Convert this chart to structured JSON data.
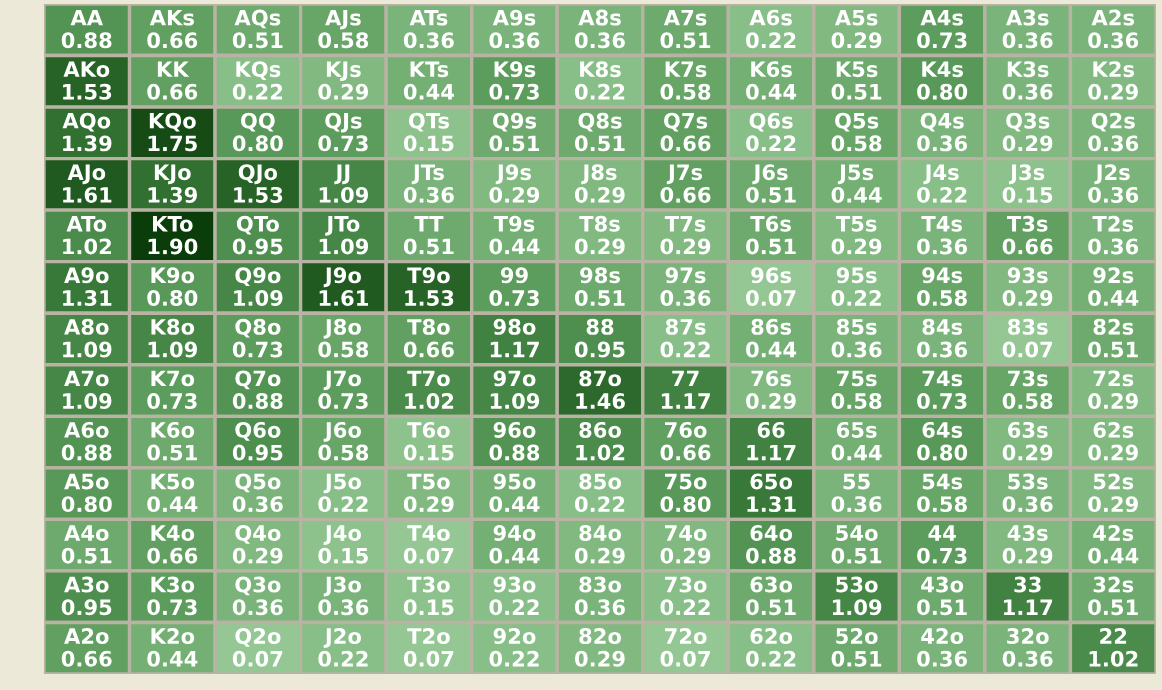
{
  "chart_data": {
    "type": "heatmap",
    "cell_labels": [
      [
        "0.88",
        "0.66",
        "0.51",
        "0.58",
        "0.36",
        "0.36",
        "0.36",
        "0.51",
        "0.22",
        "0.29",
        "0.73",
        "0.36",
        "0.36"
      ],
      [
        "1.53",
        "0.66",
        "0.22",
        "0.29",
        "0.44",
        "0.73",
        "0.22",
        "0.58",
        "0.44",
        "0.51",
        "0.80",
        "0.36",
        "0.29"
      ],
      [
        "1.39",
        "1.75",
        "0.80",
        "0.73",
        "0.15",
        "0.51",
        "0.51",
        "0.66",
        "0.22",
        "0.58",
        "0.36",
        "0.29",
        "0.36"
      ],
      [
        "1.61",
        "1.39",
        "1.53",
        "1.09",
        "0.36",
        "0.29",
        "0.29",
        "0.66",
        "0.51",
        "0.44",
        "0.22",
        "0.15",
        "0.36"
      ],
      [
        "1.02",
        "1.90",
        "0.95",
        "1.09",
        "0.51",
        "0.44",
        "0.29",
        "0.29",
        "0.51",
        "0.29",
        "0.36",
        "0.66",
        "0.36"
      ],
      [
        "1.31",
        "0.80",
        "1.09",
        "1.61",
        "1.53",
        "0.73",
        "0.51",
        "0.36",
        "0.07",
        "0.22",
        "0.58",
        "0.29",
        "0.44"
      ],
      [
        "1.09",
        "1.09",
        "0.73",
        "0.58",
        "0.66",
        "1.17",
        "0.95",
        "0.22",
        "0.44",
        "0.36",
        "0.36",
        "0.07",
        "0.51"
      ],
      [
        "1.09",
        "0.73",
        "0.88",
        "0.73",
        "1.02",
        "1.09",
        "1.46",
        "1.17",
        "0.29",
        "0.58",
        "0.73",
        "0.58",
        "0.29"
      ],
      [
        "0.88",
        "0.51",
        "0.95",
        "0.58",
        "0.15",
        "0.88",
        "1.02",
        "0.66",
        "1.17",
        "0.44",
        "0.80",
        "0.29",
        "0.29"
      ],
      [
        "0.80",
        "0.44",
        "0.36",
        "0.22",
        "0.29",
        "0.44",
        "0.22",
        "0.80",
        "1.31",
        "0.36",
        "0.58",
        "0.36",
        "0.29"
      ],
      [
        "0.51",
        "0.66",
        "0.29",
        "0.15",
        "0.07",
        "0.44",
        "0.29",
        "0.29",
        "0.88",
        "0.51",
        "0.73",
        "0.29",
        "0.44"
      ],
      [
        "0.95",
        "0.73",
        "0.36",
        "0.36",
        "0.15",
        "0.22",
        "0.36",
        "0.22",
        "0.51",
        "1.09",
        "0.51",
        "1.17",
        "0.51"
      ],
      [
        "0.66",
        "0.44",
        "0.07",
        "0.22",
        "0.07",
        "0.22",
        "0.29",
        "0.07",
        "0.22",
        "0.51",
        "0.36",
        "0.36",
        "1.02"
      ]
    ],
    "categories": [
      null,
      null,
      null,
      null,
      null,
      null,
      null,
      null,
      null,
      null,
      null,
      null,
      null
    ],
    "y_categories": [
      null,
      null,
      null,
      null,
      null,
      null,
      null,
      null,
      null,
      null,
      null,
      null,
      null
    ],
    "cells": [
      [
        0.88,
        0.66,
        0.51,
        0.58,
        0.36,
        0.36,
        0.36,
        0.51,
        0.22,
        0.29,
        0.73,
        0.36,
        0.36
      ],
      [
        1.53,
        0.66,
        0.22,
        0.29,
        0.44,
        0.73,
        0.22,
        0.58,
        0.44,
        0.51,
        0.8,
        0.36,
        0.29
      ],
      [
        1.39,
        1.75,
        0.8,
        0.73,
        0.15,
        0.51,
        0.51,
        0.66,
        0.22,
        0.58,
        0.36,
        0.29,
        0.36
      ],
      [
        1.61,
        1.39,
        1.53,
        1.09,
        0.36,
        0.29,
        0.29,
        0.66,
        0.51,
        0.44,
        0.22,
        0.15,
        0.36
      ],
      [
        1.02,
        1.9,
        0.95,
        1.09,
        0.51,
        0.44,
        0.29,
        0.29,
        0.51,
        0.29,
        0.36,
        0.66,
        0.36
      ],
      [
        1.31,
        0.8,
        1.09,
        1.61,
        1.53,
        0.73,
        0.51,
        0.36,
        0.07,
        0.22,
        0.58,
        0.29,
        0.44
      ],
      [
        1.09,
        1.09,
        0.73,
        0.58,
        0.66,
        1.17,
        0.95,
        0.22,
        0.44,
        0.36,
        0.36,
        0.07,
        0.51
      ],
      [
        1.09,
        0.73,
        0.88,
        0.73,
        1.02,
        1.09,
        1.46,
        1.17,
        0.29,
        0.58,
        0.73,
        0.58,
        0.29
      ],
      [
        0.88,
        0.51,
        0.95,
        0.58,
        0.15,
        0.88,
        1.02,
        0.66,
        1.17,
        0.44,
        0.8,
        0.29,
        0.29
      ],
      [
        0.8,
        0.44,
        0.36,
        0.22,
        0.29,
        0.44,
        0.22,
        0.8,
        1.31,
        0.36,
        0.58,
        0.36,
        0.29
      ],
      [
        0.51,
        0.66,
        0.29,
        0.15,
        0.07,
        0.44,
        0.29,
        0.29,
        0.88,
        0.51,
        0.73,
        0.29,
        0.44
      ],
      [
        0.95,
        0.73,
        0.36,
        0.36,
        0.15,
        0.22,
        0.36,
        0.22,
        0.51,
        1.09,
        0.51,
        1.17,
        0.51
      ],
      [
        0.66,
        0.44,
        0.07,
        0.22,
        0.07,
        0.22,
        0.29,
        0.07,
        0.22,
        0.51,
        0.36,
        0.36,
        1.02
      ]
    ],
    "annotations": [
      "AA",
      "AKs",
      "AQs",
      "AJs",
      "ATs",
      "A9s",
      "A8s",
      "A7s",
      "A6s",
      "A5s",
      "A4s",
      "A3s",
      "A2s",
      "AKo",
      "KK",
      "KQs",
      "KJs",
      "KTs",
      "K9s",
      "K8s",
      "K7s",
      "K6s",
      "K5s",
      "K4s",
      "K3s",
      "K2s",
      "AQo",
      "KQo",
      "QQ",
      "QJs",
      "QTs",
      "Q9s",
      "Q8s",
      "Q7s",
      "Q6s",
      "Q5s",
      "Q4s",
      "Q3s",
      "Q2s",
      "AJo",
      "KJo",
      "QJo",
      "JJ",
      "JTs",
      "J9s",
      "J8s",
      "J7s",
      "J6s",
      "J5s",
      "J4s",
      "J3s",
      "J2s",
      "ATo",
      "KTo",
      "QTo",
      "JTo",
      "TT",
      "T9s",
      "T8s",
      "T7s",
      "T6s",
      "T5s",
      "T4s",
      "T3s",
      "T2s",
      "A9o",
      "K9o",
      "Q9o",
      "J9o",
      "T9o",
      "99",
      "98s",
      "97s",
      "96s",
      "95s",
      "94s",
      "93s",
      "92s",
      "A8o",
      "K8o",
      "Q8o",
      "J8o",
      "T8o",
      "98o",
      "88",
      "87s",
      "86s",
      "85s",
      "84s",
      "83s",
      "82s",
      "A7o",
      "K7o",
      "Q7o",
      "J7o",
      "T7o",
      "97o",
      "87o",
      "77",
      "76s",
      "75s",
      "74s",
      "73s",
      "72s",
      "A6o",
      "K6o",
      "Q6o",
      "J6o",
      "T6o",
      "96o",
      "86o",
      "76o",
      "66",
      "65s",
      "64s",
      "63s",
      "62s",
      "A5o",
      "K5o",
      "Q5o",
      "J5o",
      "T5o",
      "95o",
      "85o",
      "75o",
      "65o",
      "55",
      "54s",
      "53s",
      "52s",
      "A4o",
      "K4o",
      "Q4o",
      "J4o",
      "T4o",
      "94o",
      "84o",
      "74o",
      "64o",
      "54o",
      "44",
      "43s",
      "42s",
      "A3o",
      "K3o",
      "Q3o",
      "J3o",
      "T3o",
      "93o",
      "83o",
      "73o",
      "63o",
      "53o",
      "43o",
      "33",
      "32s",
      "A2o",
      "K2o",
      "Q2o",
      "J2o",
      "T2o",
      "92o",
      "82o",
      "72o",
      "62o",
      "52o",
      "42o",
      "32o",
      "22"
    ]
  }
}
